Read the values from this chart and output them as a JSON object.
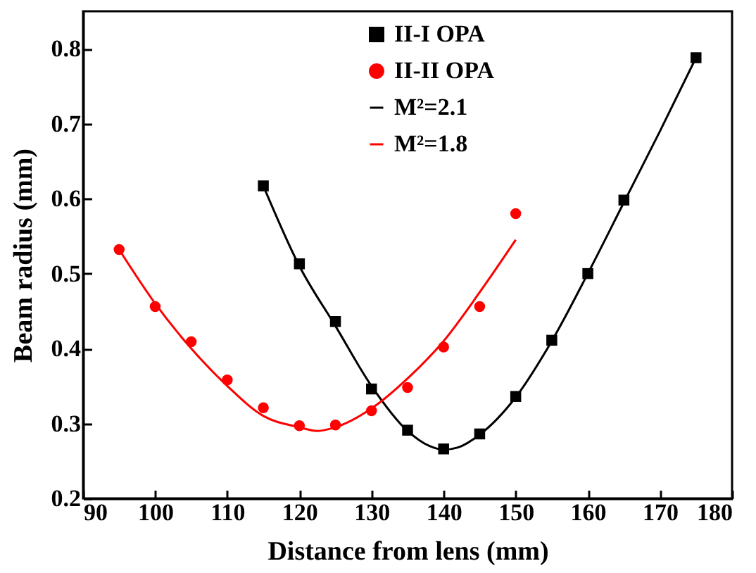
{
  "chart_data": {
    "type": "scatter",
    "xlabel": "Distance from lens (mm)",
    "ylabel": "Beam radius (mm)",
    "xlim": [
      90,
      180
    ],
    "xticks": [
      90,
      100,
      110,
      120,
      130,
      140,
      150,
      160,
      170,
      180
    ],
    "ylim": [
      0.2,
      0.85
    ],
    "yticks": [
      0.2,
      0.3,
      0.4,
      0.5,
      0.6,
      0.7,
      0.8
    ],
    "grid": false,
    "legend": "top",
    "series": [
      {
        "name": "II-I OPA",
        "marker": "square",
        "color": "#000000",
        "x": [
          115,
          120,
          125,
          130,
          135,
          140,
          145,
          150,
          155,
          160,
          165,
          175
        ],
        "values": [
          0.617,
          0.513,
          0.436,
          0.346,
          0.291,
          0.266,
          0.286,
          0.336,
          0.411,
          0.5,
          0.598,
          0.788
        ]
      },
      {
        "name": "II-II OPA",
        "marker": "circle",
        "color": "#ff0000",
        "x": [
          95,
          100,
          105,
          110,
          115,
          120,
          125,
          130,
          135,
          140,
          145,
          150
        ],
        "values": [
          0.532,
          0.456,
          0.409,
          0.358,
          0.321,
          0.297,
          0.298,
          0.317,
          0.348,
          0.402,
          0.456,
          0.58
        ]
      },
      {
        "name": "M²=2.1",
        "type": "line",
        "color": "#000000",
        "x": [
          115,
          120,
          125,
          130,
          135,
          138,
          140,
          142,
          145,
          150,
          155,
          160,
          165,
          170,
          175
        ],
        "values": [
          0.617,
          0.51,
          0.43,
          0.35,
          0.29,
          0.27,
          0.265,
          0.268,
          0.285,
          0.335,
          0.41,
          0.5,
          0.595,
          0.69,
          0.788
        ]
      },
      {
        "name": "M²=1.8",
        "type": "line",
        "color": "#ff0000",
        "x": [
          95,
          100,
          105,
          110,
          115,
          120,
          122.5,
          125,
          130,
          135,
          140,
          145,
          150
        ],
        "values": [
          0.532,
          0.46,
          0.4,
          0.35,
          0.31,
          0.295,
          0.29,
          0.295,
          0.32,
          0.36,
          0.41,
          0.475,
          0.545
        ]
      }
    ]
  }
}
